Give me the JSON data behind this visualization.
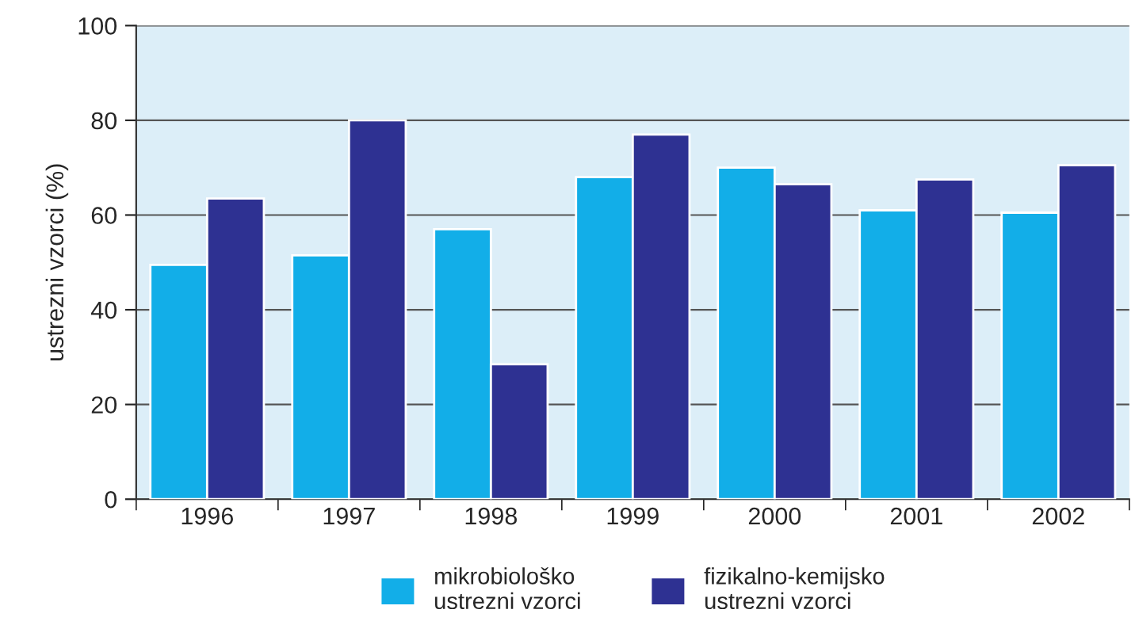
{
  "chart_data": {
    "type": "bar",
    "ylabel": "ustrezni vzorci (%)",
    "categories": [
      "1996",
      "1997",
      "1998",
      "1999",
      "2000",
      "2001",
      "2002"
    ],
    "series": [
      {
        "name": "mikrobiološko\nustrezni vzorci",
        "color": "#12aee8",
        "values": [
          49.5,
          51.5,
          57,
          68,
          70,
          61,
          60.5
        ]
      },
      {
        "name": "fizikalno-kemijsko\nustrezni vzorci",
        "color": "#2e3192",
        "values": [
          63.5,
          80,
          28.5,
          77,
          66.5,
          67.5,
          70.5
        ]
      }
    ],
    "ylim": [
      0,
      100
    ],
    "yticks": [
      0,
      20,
      40,
      60,
      80,
      100
    ],
    "grid": "y",
    "legend": "bottom"
  }
}
